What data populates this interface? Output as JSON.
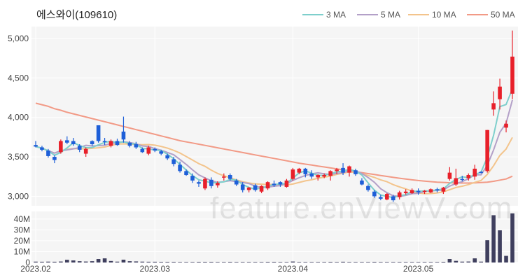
{
  "chart_data": {
    "type": "candlestick",
    "title": "에스와이(109610)",
    "watermark": "feature.enViewV.com",
    "legend": {
      "placement": "top-right",
      "items": [
        {
          "name": "3 MA",
          "color": "#7ecfcc"
        },
        {
          "name": "5 MA",
          "color": "#b3a0c8"
        },
        {
          "name": "10 MA",
          "color": "#f3c48c"
        },
        {
          "name": "50 MA",
          "color": "#f29a86"
        }
      ]
    },
    "colors": {
      "up": "#e8202a",
      "down": "#1e5fd8",
      "volume": "#3f3f5e",
      "panel_bg": "#f5f5f5",
      "grid": "#ffffff"
    },
    "price_axis": {
      "ticks": [
        3000,
        3500,
        4000,
        4500,
        5000
      ],
      "labels": [
        "3,000",
        "3,500",
        "4,000",
        "4,500",
        "5,000"
      ],
      "range": [
        2880,
        5150
      ]
    },
    "volume_axis": {
      "ticks": [
        0,
        10,
        20,
        30,
        40
      ],
      "labels": [
        "0",
        "10M",
        "20M",
        "30M",
        "40M"
      ],
      "range": [
        0,
        47
      ],
      "unit": "M"
    },
    "x_axis": {
      "labels": [
        "2023.02",
        "2023.03",
        "2023.04",
        "2023.05"
      ],
      "label_index": [
        0,
        19,
        41,
        61
      ]
    },
    "ohlc": [
      [
        3650,
        3700,
        3620,
        3630
      ],
      [
        3620,
        3640,
        3570,
        3590
      ],
      [
        3580,
        3600,
        3490,
        3510
      ],
      [
        3500,
        3520,
        3420,
        3460
      ],
      [
        3560,
        3720,
        3540,
        3700
      ],
      [
        3710,
        3760,
        3660,
        3680
      ],
      [
        3700,
        3740,
        3640,
        3660
      ],
      [
        3640,
        3660,
        3560,
        3590
      ],
      [
        3540,
        3620,
        3500,
        3600
      ],
      [
        3700,
        3710,
        3640,
        3660
      ],
      [
        3900,
        3900,
        3680,
        3700
      ],
      [
        3700,
        3740,
        3650,
        3690
      ],
      [
        3640,
        3720,
        3620,
        3700
      ],
      [
        3700,
        3730,
        3640,
        3650
      ],
      [
        3820,
        4010,
        3680,
        3720
      ],
      [
        3680,
        3700,
        3620,
        3640
      ],
      [
        3660,
        3690,
        3600,
        3620
      ],
      [
        3600,
        3620,
        3550,
        3560
      ],
      [
        3540,
        3640,
        3520,
        3620
      ],
      [
        3600,
        3620,
        3560,
        3580
      ],
      [
        3570,
        3590,
        3520,
        3540
      ],
      [
        3520,
        3540,
        3460,
        3480
      ],
      [
        3470,
        3500,
        3380,
        3410
      ],
      [
        3400,
        3440,
        3300,
        3320
      ],
      [
        3320,
        3340,
        3260,
        3270
      ],
      [
        3260,
        3290,
        3170,
        3200
      ],
      [
        3180,
        3200,
        3120,
        3160
      ],
      [
        3100,
        3240,
        3080,
        3220
      ],
      [
        3210,
        3240,
        3100,
        3130
      ],
      [
        3140,
        3190,
        3110,
        3170
      ],
      [
        3250,
        3290,
        3200,
        3250
      ],
      [
        3270,
        3290,
        3200,
        3220
      ],
      [
        3200,
        3220,
        3130,
        3150
      ],
      [
        3150,
        3180,
        3050,
        3080
      ],
      [
        3080,
        3120,
        3050,
        3110
      ],
      [
        3140,
        3160,
        3060,
        3080
      ],
      [
        3060,
        3140,
        3040,
        3130
      ],
      [
        3100,
        3190,
        3080,
        3180
      ],
      [
        3160,
        3200,
        3120,
        3140
      ],
      [
        3180,
        3190,
        3120,
        3150
      ],
      [
        3120,
        3220,
        3110,
        3200
      ],
      [
        3220,
        3360,
        3200,
        3340
      ],
      [
        3300,
        3360,
        3280,
        3350
      ],
      [
        3350,
        3360,
        3240,
        3280
      ],
      [
        3290,
        3330,
        3220,
        3250
      ],
      [
        3240,
        3280,
        3200,
        3270
      ],
      [
        3250,
        3290,
        3230,
        3270
      ],
      [
        3260,
        3330,
        3200,
        3320
      ],
      [
        3320,
        3360,
        3280,
        3340
      ],
      [
        3360,
        3420,
        3270,
        3300
      ],
      [
        3300,
        3390,
        3250,
        3380
      ],
      [
        3330,
        3350,
        3260,
        3280
      ],
      [
        3200,
        3230,
        3140,
        3150
      ],
      [
        3130,
        3150,
        3060,
        3080
      ],
      [
        3060,
        3080,
        2980,
        3000
      ],
      [
        2990,
        3020,
        2950,
        2970
      ],
      [
        2960,
        3040,
        2950,
        3030
      ],
      [
        3000,
        3020,
        2930,
        2950
      ],
      [
        2990,
        3070,
        2960,
        3050
      ],
      [
        3040,
        3090,
        3020,
        3060
      ],
      [
        3040,
        3100,
        3030,
        3080
      ],
      [
        3070,
        3100,
        3020,
        3050
      ],
      [
        3060,
        3080,
        3030,
        3070
      ],
      [
        3050,
        3100,
        3040,
        3090
      ],
      [
        3090,
        3110,
        3050,
        3080
      ],
      [
        3060,
        3120,
        3030,
        3110
      ],
      [
        3220,
        3370,
        3200,
        3300
      ],
      [
        3150,
        3350,
        3130,
        3230
      ],
      [
        3220,
        3260,
        3190,
        3210
      ],
      [
        3230,
        3290,
        3200,
        3270
      ],
      [
        3250,
        3400,
        3210,
        3350
      ],
      [
        3310,
        3320,
        3290,
        3300
      ],
      [
        3320,
        3840,
        3300,
        3840
      ],
      [
        4100,
        4330,
        4020,
        4180
      ],
      [
        4230,
        4490,
        4100,
        4390
      ],
      [
        3870,
        3960,
        3810,
        3920
      ],
      [
        4300,
        5100,
        4230,
        4770
      ]
    ],
    "volume_m": [
      0.8,
      0.7,
      0.8,
      0.7,
      0.9,
      2.5,
      1.9,
      1.2,
      0.9,
      1.2,
      3.2,
      3.8,
      1.4,
      0.8,
      2.6,
      1.2,
      1.0,
      0.8,
      0.7,
      0.7,
      0.6,
      0.6,
      0.6,
      0.5,
      0.5,
      0.5,
      0.6,
      0.6,
      0.6,
      0.5,
      0.5,
      0.6,
      0.5,
      0.5,
      0.5,
      0.5,
      0.5,
      0.6,
      0.6,
      0.5,
      0.5,
      0.9,
      0.5,
      0.5,
      0.5,
      0.5,
      0.5,
      0.6,
      0.5,
      0.7,
      0.5,
      0.5,
      0.5,
      0.5,
      0.6,
      0.5,
      0.5,
      0.5,
      0.5,
      0.5,
      0.5,
      0.5,
      0.5,
      0.5,
      0.5,
      0.6,
      3.2,
      1.5,
      0.8,
      0.9,
      3.8,
      0.8,
      20.5,
      43.5,
      29.6,
      6.1,
      45.2
    ],
    "ma50": [
      4180,
      4160,
      4140,
      4110,
      4090,
      4065,
      4045,
      4025,
      4005,
      3985,
      3965,
      3945,
      3925,
      3905,
      3885,
      3865,
      3845,
      3825,
      3805,
      3785,
      3765,
      3745,
      3725,
      3705,
      3690,
      3675,
      3660,
      3645,
      3630,
      3615,
      3600,
      3585,
      3570,
      3555,
      3540,
      3525,
      3510,
      3495,
      3480,
      3465,
      3450,
      3435,
      3420,
      3408,
      3396,
      3384,
      3372,
      3360,
      3348,
      3336,
      3324,
      3312,
      3300,
      3288,
      3276,
      3264,
      3252,
      3240,
      3229,
      3219,
      3209,
      3200,
      3192,
      3186,
      3180,
      3176,
      3172,
      3170,
      3168,
      3168,
      3170,
      3175,
      3180,
      3190,
      3205,
      3220,
      3255
    ]
  }
}
